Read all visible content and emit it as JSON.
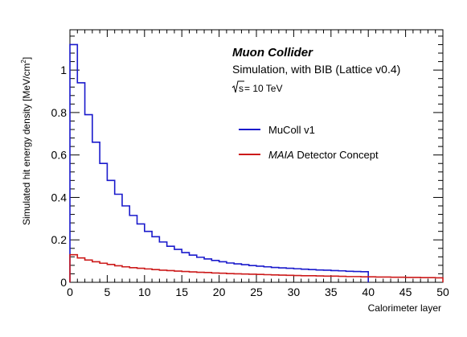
{
  "chart_data": {
    "type": "step",
    "title": "",
    "xlabel": "Calorimeter layer",
    "ylabel_main": "Simulated hit energy density [MeV/cm",
    "ylabel_sup": "2",
    "ylabel_end": "]",
    "xlim": [
      0,
      50
    ],
    "ylim": [
      0,
      1.19
    ],
    "x_ticks": [
      0,
      5,
      10,
      15,
      20,
      25,
      30,
      35,
      40,
      45,
      50
    ],
    "y_ticks": [
      0,
      0.2,
      0.4,
      0.6,
      0.8,
      1
    ],
    "y_tick_labels": [
      "0",
      "0.2",
      "0.4",
      "0.6",
      "0.8",
      "1"
    ],
    "grid": false,
    "legend_position": "top-right",
    "annotations": {
      "experiment": "Muon Collider",
      "simulation": "Simulation, with BIB (Lattice v0.4)",
      "energy_prefix": "s",
      "energy_value": " = 10 TeV"
    },
    "series": [
      {
        "name": "MuColl v1",
        "name_italic": "",
        "color": "#1a1acc",
        "bin_edges": [
          0,
          1,
          2,
          3,
          4,
          5,
          6,
          7,
          8,
          9,
          10,
          11,
          12,
          13,
          14,
          15,
          16,
          17,
          18,
          19,
          20,
          21,
          22,
          23,
          24,
          25,
          26,
          27,
          28,
          29,
          30,
          31,
          32,
          33,
          34,
          35,
          36,
          37,
          38,
          39,
          40
        ],
        "values": [
          1.12,
          0.94,
          0.79,
          0.66,
          0.56,
          0.48,
          0.415,
          0.36,
          0.315,
          0.275,
          0.24,
          0.215,
          0.19,
          0.17,
          0.155,
          0.14,
          0.128,
          0.118,
          0.11,
          0.103,
          0.097,
          0.091,
          0.087,
          0.083,
          0.079,
          0.076,
          0.073,
          0.07,
          0.068,
          0.066,
          0.064,
          0.062,
          0.06,
          0.058,
          0.057,
          0.055,
          0.054,
          0.052,
          0.051,
          0.05
        ]
      },
      {
        "name": " Detector Concept",
        "name_italic": "MAIA",
        "color": "#cc1a1a",
        "bin_edges": [
          0,
          1,
          2,
          3,
          4,
          5,
          6,
          7,
          8,
          9,
          10,
          11,
          12,
          13,
          14,
          15,
          16,
          17,
          18,
          19,
          20,
          21,
          22,
          23,
          24,
          25,
          26,
          27,
          28,
          29,
          30,
          31,
          32,
          33,
          34,
          35,
          36,
          37,
          38,
          39,
          40,
          41,
          42,
          43,
          44,
          45,
          46,
          47,
          48,
          49,
          50
        ],
        "values": [
          0.13,
          0.115,
          0.105,
          0.097,
          0.09,
          0.084,
          0.078,
          0.073,
          0.069,
          0.066,
          0.063,
          0.06,
          0.057,
          0.055,
          0.053,
          0.051,
          0.049,
          0.047,
          0.046,
          0.044,
          0.043,
          0.041,
          0.04,
          0.039,
          0.038,
          0.037,
          0.036,
          0.035,
          0.034,
          0.033,
          0.032,
          0.031,
          0.031,
          0.03,
          0.029,
          0.029,
          0.028,
          0.027,
          0.027,
          0.026,
          0.026,
          0.025,
          0.025,
          0.024,
          0.024,
          0.023,
          0.023,
          0.022,
          0.022,
          0.021
        ]
      }
    ]
  }
}
